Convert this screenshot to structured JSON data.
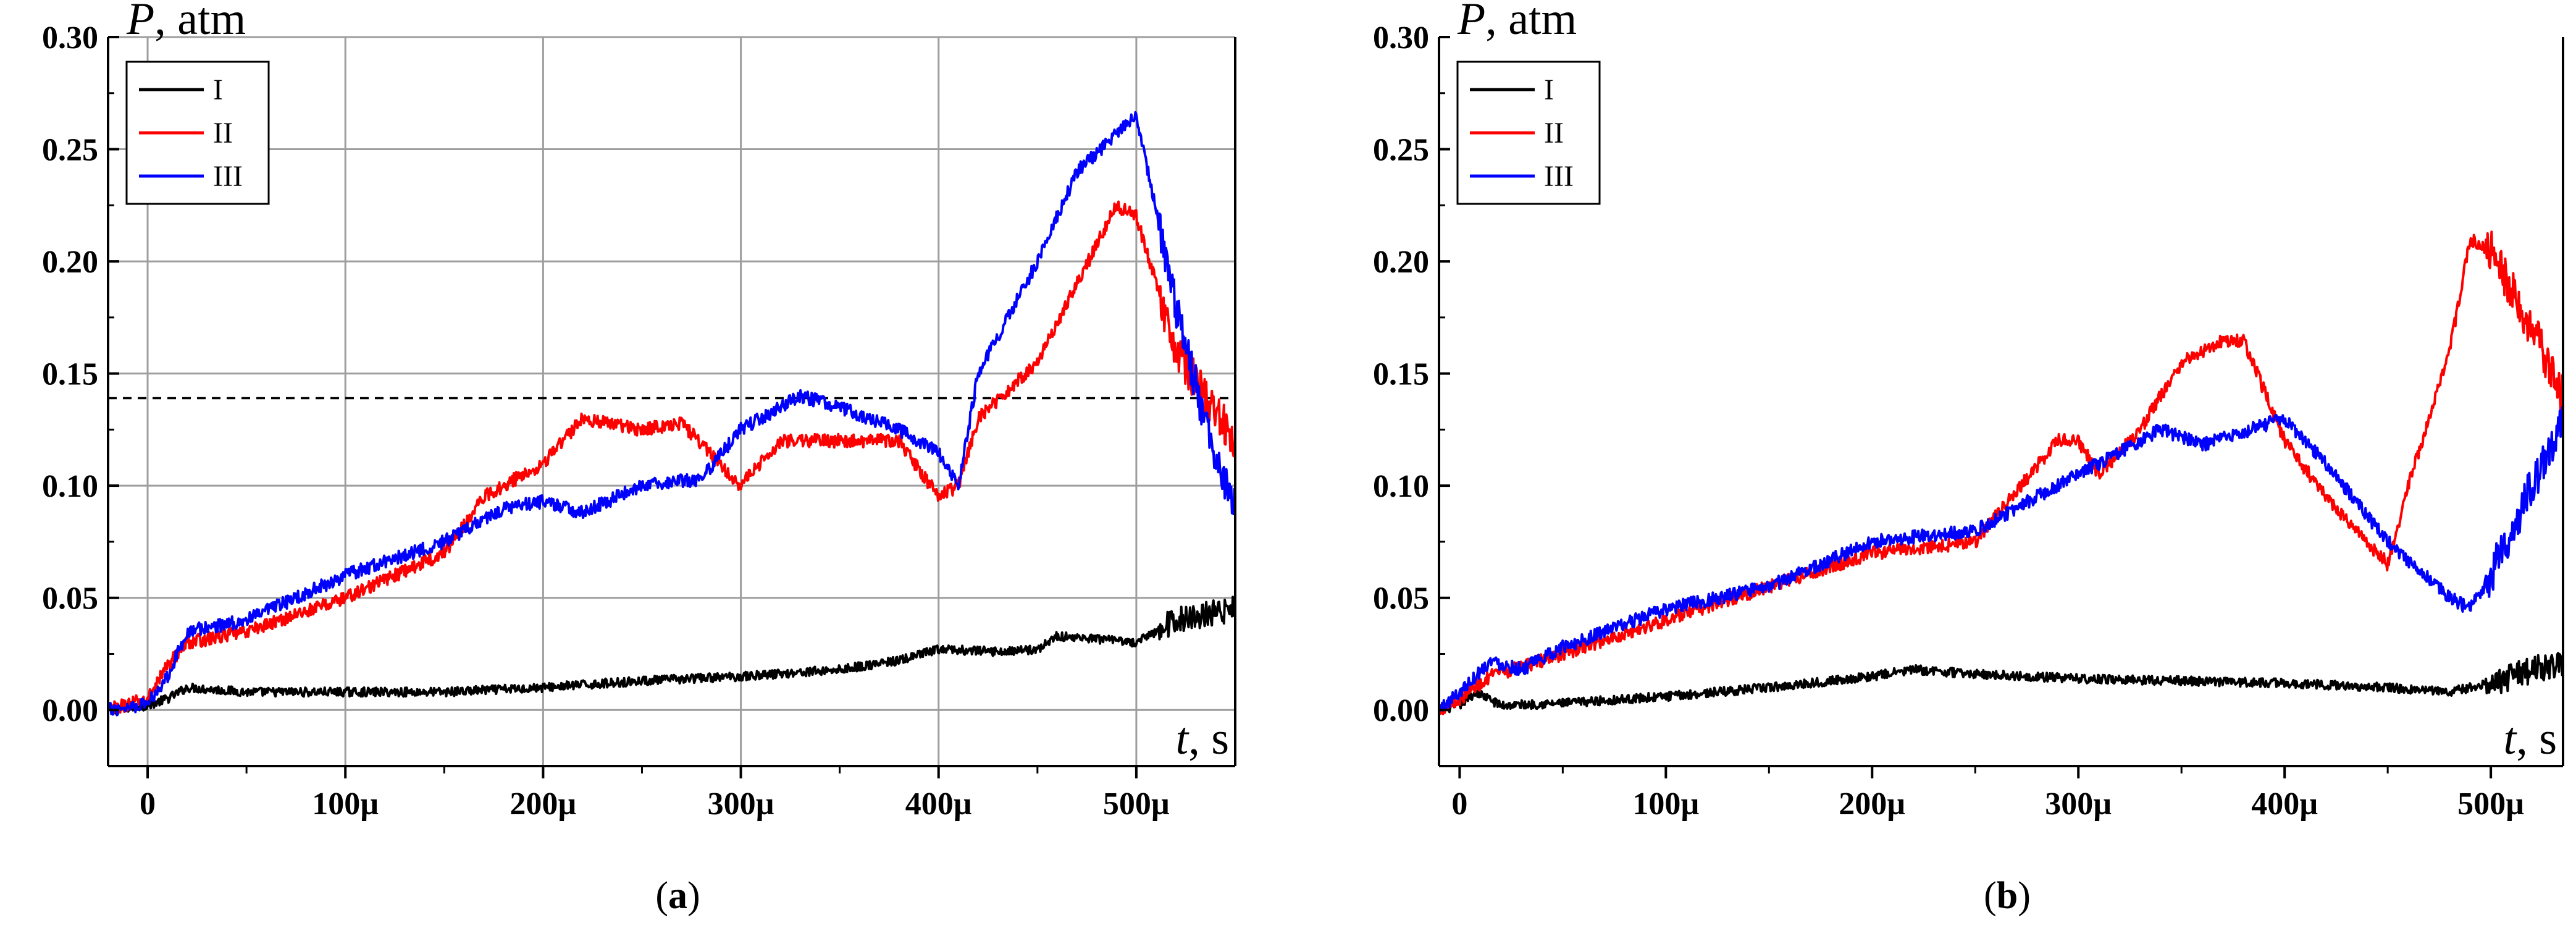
{
  "colors": {
    "I": "#000000",
    "II": "#ff0000",
    "III": "#0000ff",
    "grid": "#9e9e9e",
    "axis": "#000000"
  },
  "chart_data": [
    {
      "panel": "a",
      "caption_letter": "a",
      "caption": "(a)",
      "type": "line",
      "ylabel_var": "P",
      "ylabel_unit": ", atm",
      "xlabel_var": "t",
      "xlabel_unit": ", s",
      "xlim": [
        -2e-05,
        0.00055
      ],
      "ylim": [
        -0.025,
        0.3
      ],
      "xticks": [
        0,
        0.0001,
        0.0002,
        0.0003,
        0.0004,
        0.0005
      ],
      "xtick_labels": [
        "0",
        "100µ",
        "200µ",
        "300µ",
        "400µ",
        "500µ"
      ],
      "yticks": [
        0.0,
        0.05,
        0.1,
        0.15,
        0.2,
        0.25,
        0.3
      ],
      "ytick_labels": [
        "0.00",
        "0.05",
        "0.10",
        "0.15",
        "0.20",
        "0.25",
        "0.30"
      ],
      "grid": true,
      "legend_position": "top-left",
      "reference_line": {
        "y": 0.139,
        "style": "dashed"
      },
      "series": [
        {
          "name": "I",
          "color": "#000000",
          "noise": 0.002,
          "x": [
            -2e-05,
            0.0,
            1e-05,
            2e-05,
            5e-05,
            0.0001,
            0.00015,
            0.0002,
            0.00025,
            0.0003,
            0.00035,
            0.00038,
            0.0004,
            0.00043,
            0.00045,
            0.00046,
            0.0005,
            0.00052,
            0.00055
          ],
          "y": [
            0.0,
            0.002,
            0.005,
            0.01,
            0.008,
            0.008,
            0.008,
            0.01,
            0.013,
            0.015,
            0.018,
            0.022,
            0.027,
            0.026,
            0.027,
            0.033,
            0.03,
            0.04,
            0.045
          ]
        },
        {
          "name": "II",
          "color": "#ff0000",
          "noise": 0.003,
          "x": [
            -2e-05,
            0.0,
            1e-05,
            2e-05,
            5e-05,
            0.0001,
            0.00015,
            0.00017,
            0.0002,
            0.00022,
            0.00025,
            0.00027,
            0.0003,
            0.00032,
            0.00035,
            0.00038,
            0.0004,
            0.00041,
            0.00042,
            0.00045,
            0.00047,
            0.00049,
            0.0005,
            0.00052,
            0.00055
          ],
          "y": [
            0.0,
            0.005,
            0.02,
            0.03,
            0.035,
            0.05,
            0.07,
            0.095,
            0.11,
            0.13,
            0.125,
            0.128,
            0.1,
            0.12,
            0.12,
            0.12,
            0.095,
            0.1,
            0.13,
            0.155,
            0.19,
            0.225,
            0.22,
            0.16,
            0.12
          ]
        },
        {
          "name": "III",
          "color": "#0000ff",
          "noise": 0.003,
          "x": [
            -2e-05,
            0.0,
            1e-05,
            2e-05,
            5e-05,
            0.0001,
            0.00015,
            0.00018,
            0.0002,
            0.00022,
            0.00025,
            0.00028,
            0.0003,
            0.00033,
            0.00035,
            0.00038,
            0.0004,
            0.00041,
            0.00042,
            0.00045,
            0.00047,
            0.0005,
            0.00052,
            0.00054,
            0.00055
          ],
          "y": [
            0.0,
            0.003,
            0.015,
            0.035,
            0.04,
            0.06,
            0.075,
            0.09,
            0.093,
            0.088,
            0.1,
            0.103,
            0.125,
            0.14,
            0.135,
            0.125,
            0.115,
            0.1,
            0.15,
            0.2,
            0.24,
            0.265,
            0.18,
            0.11,
            0.09
          ]
        }
      ]
    },
    {
      "panel": "b",
      "caption_letter": "b",
      "caption": "(b)",
      "type": "line",
      "ylabel_var": "P",
      "ylabel_unit": ", atm",
      "xlabel_var": "t",
      "xlabel_unit": ", s",
      "xlim": [
        -1e-05,
        0.000535
      ],
      "ylim": [
        -0.025,
        0.3
      ],
      "xticks": [
        0,
        0.0001,
        0.0002,
        0.0003,
        0.0004,
        0.0005
      ],
      "xtick_labels": [
        "0",
        "100µ",
        "200µ",
        "300µ",
        "400µ",
        "500µ"
      ],
      "yticks": [
        0.0,
        0.05,
        0.1,
        0.15,
        0.2,
        0.25,
        0.3
      ],
      "ytick_labels": [
        "0.00",
        "0.05",
        "0.10",
        "0.15",
        "0.20",
        "0.25",
        "0.30"
      ],
      "grid": false,
      "legend_position": "top-left",
      "series": [
        {
          "name": "I",
          "color": "#000000",
          "noise": 0.002,
          "x": [
            -1e-05,
            0.0,
            8e-06,
            2e-05,
            5e-05,
            0.0001,
            0.00015,
            0.0002,
            0.00022,
            0.00025,
            0.0003,
            0.00035,
            0.0004,
            0.00045,
            0.00048,
            0.0005,
            0.00052,
            0.000535
          ],
          "y": [
            0.0,
            0.002,
            0.008,
            0.002,
            0.003,
            0.006,
            0.01,
            0.015,
            0.018,
            0.016,
            0.014,
            0.013,
            0.012,
            0.01,
            0.008,
            0.012,
            0.018,
            0.02
          ]
        },
        {
          "name": "II",
          "color": "#ff0000",
          "noise": 0.003,
          "x": [
            -1e-05,
            0.0,
            1.5e-05,
            5e-05,
            0.0001,
            0.00015,
            0.0002,
            0.00025,
            0.00029,
            0.0003,
            0.00031,
            0.00033,
            0.00035,
            0.00037,
            0.00038,
            0.0004,
            0.00042,
            0.00045,
            0.00046,
            0.00048,
            0.00049,
            0.0005,
            0.00052,
            0.000535
          ],
          "y": [
            0.0,
            0.005,
            0.015,
            0.025,
            0.04,
            0.055,
            0.07,
            0.075,
            0.12,
            0.12,
            0.105,
            0.125,
            0.155,
            0.165,
            0.165,
            0.12,
            0.095,
            0.065,
            0.1,
            0.16,
            0.21,
            0.205,
            0.17,
            0.14
          ]
        },
        {
          "name": "III",
          "color": "#0000ff",
          "noise": 0.003,
          "x": [
            -1e-05,
            0.0,
            1.5e-05,
            3e-05,
            5e-05,
            0.0001,
            0.00015,
            0.0002,
            0.00025,
            0.0003,
            0.00034,
            0.00036,
            0.0004,
            0.00042,
            0.00045,
            0.00048,
            0.00049,
            0.0005,
            0.00052,
            0.000535
          ],
          "y": [
            0.0,
            0.008,
            0.022,
            0.018,
            0.028,
            0.045,
            0.055,
            0.075,
            0.08,
            0.105,
            0.125,
            0.118,
            0.13,
            0.11,
            0.075,
            0.05,
            0.045,
            0.06,
            0.1,
            0.13
          ]
        }
      ]
    }
  ]
}
